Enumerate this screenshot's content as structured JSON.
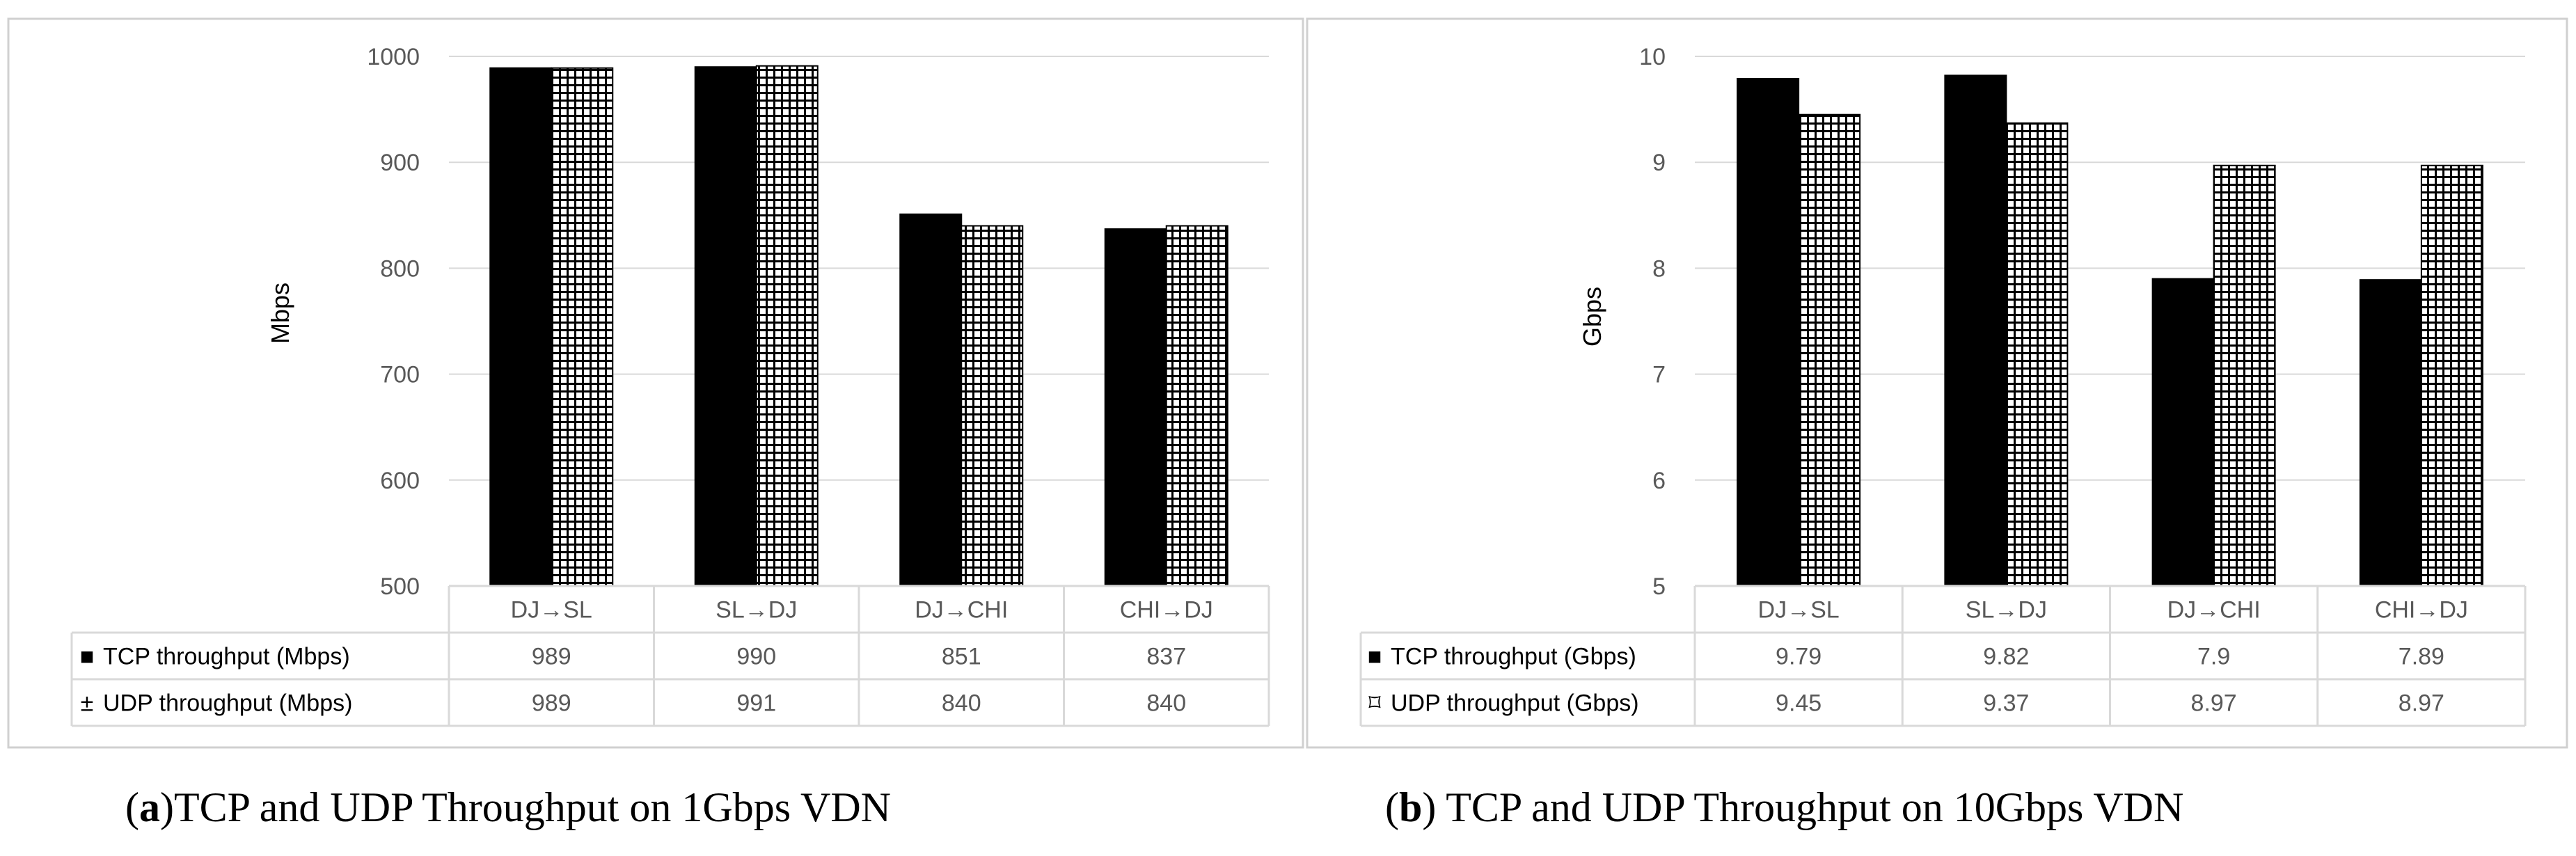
{
  "chart_data": [
    {
      "type": "bar",
      "title": "",
      "ylabel": "Mbps",
      "xlabel": "",
      "ylim": [
        500,
        1000
      ],
      "yticks": [
        500,
        600,
        700,
        800,
        900,
        1000
      ],
      "grid": true,
      "categories": [
        "DJ→SL",
        "SL→DJ",
        "DJ→CHI",
        "CHI→DJ"
      ],
      "series": [
        {
          "name": "TCP throughput (Mbps)",
          "legend_symbol": "■",
          "fill": "solid",
          "values": [
            989,
            990,
            851,
            837
          ]
        },
        {
          "name": "UDP throughput (Mbps)",
          "legend_symbol": "±",
          "fill": "grid",
          "values": [
            989,
            991,
            840,
            840
          ]
        }
      ],
      "data_table": {
        "rows": [
          [
            "989",
            "990",
            "851",
            "837"
          ],
          [
            "989",
            "991",
            "840",
            "840"
          ]
        ]
      },
      "caption": {
        "label": "a",
        "text": ")TCP and UDP Throughput on 1Gbps VDN"
      }
    },
    {
      "type": "bar",
      "title": "",
      "ylabel": "Gbps",
      "xlabel": "",
      "ylim": [
        5,
        10
      ],
      "yticks": [
        5,
        6,
        7,
        8,
        9,
        10
      ],
      "grid": true,
      "categories": [
        "DJ→SL",
        "SL→DJ",
        "DJ→CHI",
        "CHI→DJ"
      ],
      "series": [
        {
          "name": "TCP throughput (Gbps)",
          "legend_symbol": "■",
          "fill": "solid",
          "values": [
            9.79,
            9.82,
            7.9,
            7.89
          ]
        },
        {
          "name": "UDP throughput (Gbps)",
          "legend_symbol": "⌑",
          "fill": "grid",
          "values": [
            9.45,
            9.37,
            8.97,
            8.97
          ]
        }
      ],
      "data_table": {
        "rows": [
          [
            "9.79",
            "9.82",
            "7.9",
            "7.89"
          ],
          [
            "9.45",
            "9.37",
            "8.97",
            "8.97"
          ]
        ]
      },
      "caption": {
        "label": "b",
        "text": ") TCP and UDP Throughput on 10Gbps VDN"
      }
    }
  ],
  "colors": {
    "bar": "#000000",
    "gridline": "#d9d9d9",
    "table_border": "#d9d9d9",
    "axis_text": "#595959",
    "frame": "#d0d0d0",
    "caption": "#000000"
  }
}
